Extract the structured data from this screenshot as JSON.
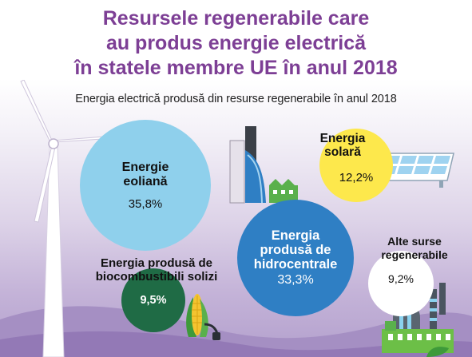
{
  "title": {
    "line1": "Resursele regenerabile care",
    "line2": "au produs energie electrică",
    "line3": "în statele membre UE în anul 2018"
  },
  "subtitle": "Energia electrică produsă din resurse regenerabile în anul 2018",
  "sources": {
    "wind": {
      "label_line1": "Energie",
      "label_line2": "eoliană",
      "percent": "35,8%"
    },
    "solar": {
      "label_line1": "Energia",
      "label_line2": "solară",
      "percent": "12,2%"
    },
    "hydro": {
      "label_line1": "Energia",
      "label_line2": "produsă de",
      "label_line3": "hidrocentrale",
      "percent": "33,3%"
    },
    "other": {
      "label_line1": "Alte surse",
      "label_line2": "regenerabile",
      "percent": "9,2%"
    },
    "biofuel": {
      "label_line1": "Energia produsă de",
      "label_line2": "biocombustibili solizi",
      "percent": "9,5%"
    }
  },
  "colors": {
    "title": "#7d3f95",
    "wind": "#8fd0ec",
    "solar": "#fde84c",
    "hydro": "#2f7fc4",
    "other": "#ffffff",
    "biofuel": "#1f6b45"
  },
  "icons": [
    "wind-turbine-icon",
    "dam-icon",
    "solar-panel-icon",
    "factory-icon",
    "corn-fuel-icon"
  ]
}
